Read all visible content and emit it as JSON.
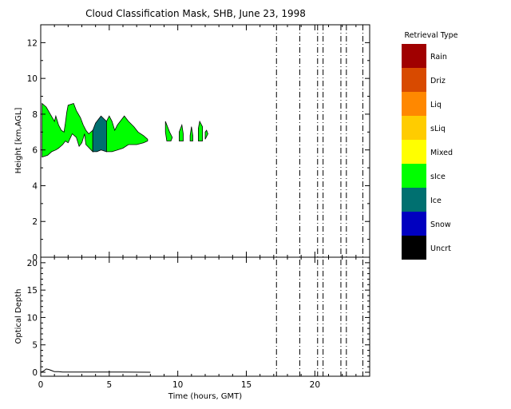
{
  "chart_data": {
    "type": "area",
    "title": "Cloud Classification Mask, SHB, June 23, 1998",
    "panels": [
      {
        "id": "mask",
        "ylabel": "Height [km,AGL]",
        "ylim": [
          0,
          13
        ],
        "yticks": [
          "0",
          "2",
          "4",
          "6",
          "8",
          "10",
          "12"
        ],
        "ytick_values": [
          0,
          2,
          4,
          6,
          8,
          10,
          12
        ]
      },
      {
        "id": "optical-depth",
        "ylabel": "Optical Depth",
        "ylim": [
          0,
          21
        ],
        "yticks": [
          "0",
          "5",
          "10",
          "15",
          "20"
        ],
        "ytick_values": [
          0,
          5,
          10,
          15,
          20
        ]
      }
    ],
    "xlabel": "Time (hours, GMT)",
    "xlim": [
      0,
      24
    ],
    "xticks": [
      "0",
      "5",
      "10",
      "15",
      "20"
    ],
    "xtick_values": [
      0,
      5,
      10,
      15,
      20
    ],
    "missing_data_lines_hours": [
      17.2,
      18.9,
      20.2,
      20.6,
      21.9,
      22.3,
      23.5
    ],
    "legend": {
      "title": "Retrieval Type",
      "position": "right",
      "entries": [
        {
          "label": "Rain",
          "color": "#a00000"
        },
        {
          "label": "Driz",
          "color": "#d84a00"
        },
        {
          "label": "Liq",
          "color": "#ff8800"
        },
        {
          "label": "sLiq",
          "color": "#ffcc00"
        },
        {
          "label": "Mixed",
          "color": "#ffff00"
        },
        {
          "label": "sIce",
          "color": "#00ff00"
        },
        {
          "label": "Ice",
          "color": "#007070"
        },
        {
          "label": "Snow",
          "color": "#0000c0"
        },
        {
          "label": "Uncrt",
          "color": "#000000"
        }
      ]
    },
    "cloud_regions": [
      {
        "class": "sIce",
        "color": "#00ff00",
        "outline": [
          [
            0.1,
            5.6
          ],
          [
            0.1,
            8.6
          ],
          [
            0.4,
            8.4
          ],
          [
            0.7,
            8.0
          ],
          [
            1.0,
            7.6
          ],
          [
            1.1,
            7.9
          ],
          [
            1.3,
            7.4
          ],
          [
            1.5,
            7.1
          ],
          [
            1.7,
            7.0
          ],
          [
            1.8,
            7.5
          ],
          [
            1.9,
            8.1
          ],
          [
            2.0,
            8.5
          ],
          [
            2.4,
            8.6
          ],
          [
            2.6,
            8.2
          ],
          [
            2.9,
            7.8
          ],
          [
            3.1,
            7.4
          ],
          [
            3.3,
            7.1
          ],
          [
            3.5,
            6.9
          ],
          [
            3.8,
            7.1
          ],
          [
            3.8,
            5.9
          ],
          [
            3.3,
            6.3
          ],
          [
            3.2,
            6.9
          ],
          [
            3.0,
            6.4
          ],
          [
            2.8,
            6.2
          ],
          [
            2.6,
            6.7
          ],
          [
            2.3,
            6.9
          ],
          [
            2.0,
            6.4
          ],
          [
            1.8,
            6.5
          ],
          [
            1.6,
            6.3
          ],
          [
            1.3,
            6.1
          ],
          [
            1.1,
            6.0
          ],
          [
            0.8,
            5.9
          ],
          [
            0.5,
            5.7
          ]
        ]
      },
      {
        "class": "Ice",
        "color": "#007070",
        "outline": [
          [
            3.8,
            7.1
          ],
          [
            4.0,
            7.5
          ],
          [
            4.2,
            7.7
          ],
          [
            4.4,
            7.9
          ],
          [
            4.8,
            7.6
          ],
          [
            4.8,
            5.9
          ],
          [
            4.4,
            6.0
          ],
          [
            4.1,
            5.9
          ],
          [
            3.8,
            5.9
          ]
        ]
      },
      {
        "class": "sIce",
        "color": "#00ff00",
        "outline": [
          [
            4.8,
            7.6
          ],
          [
            5.0,
            7.9
          ],
          [
            5.2,
            7.6
          ],
          [
            5.4,
            7.1
          ],
          [
            5.6,
            7.4
          ],
          [
            5.9,
            7.7
          ],
          [
            6.1,
            7.9
          ],
          [
            6.4,
            7.6
          ],
          [
            6.8,
            7.3
          ],
          [
            7.1,
            7.0
          ],
          [
            7.5,
            6.8
          ],
          [
            7.8,
            6.6
          ],
          [
            7.8,
            6.5
          ],
          [
            7.5,
            6.4
          ],
          [
            7.0,
            6.3
          ],
          [
            6.4,
            6.3
          ],
          [
            6.0,
            6.1
          ],
          [
            5.6,
            6.0
          ],
          [
            5.2,
            5.9
          ],
          [
            4.8,
            5.9
          ]
        ]
      },
      {
        "class": "sIce",
        "color": "#00ff00",
        "outline": [
          [
            9.1,
            7.6
          ],
          [
            9.4,
            7.0
          ],
          [
            9.6,
            6.7
          ],
          [
            9.5,
            6.5
          ],
          [
            9.2,
            6.5
          ],
          [
            9.1,
            7.0
          ]
        ]
      },
      {
        "class": "sIce",
        "color": "#00ff00",
        "outline": [
          [
            10.1,
            7.0
          ],
          [
            10.3,
            7.4
          ],
          [
            10.4,
            6.9
          ],
          [
            10.4,
            6.5
          ],
          [
            10.1,
            6.5
          ]
        ]
      },
      {
        "class": "sIce",
        "color": "#00ff00",
        "outline": [
          [
            10.9,
            6.8
          ],
          [
            11.0,
            7.3
          ],
          [
            11.1,
            6.8
          ],
          [
            11.1,
            6.5
          ],
          [
            10.9,
            6.5
          ]
        ]
      },
      {
        "class": "sIce",
        "color": "#00ff00",
        "outline": [
          [
            11.5,
            7.2
          ],
          [
            11.6,
            7.6
          ],
          [
            11.8,
            7.3
          ],
          [
            11.8,
            6.5
          ],
          [
            11.5,
            6.5
          ]
        ]
      },
      {
        "class": "sIce",
        "color": "#00ff00",
        "outline": [
          [
            12.0,
            7.0
          ],
          [
            12.1,
            7.1
          ],
          [
            12.2,
            6.9
          ],
          [
            12.0,
            6.6
          ]
        ]
      }
    ],
    "optical_depth": {
      "x": [
        0,
        0.2,
        0.4,
        0.6,
        0.8,
        1.0,
        1.3,
        1.6,
        2.0,
        3.0,
        4.0,
        5.0,
        6.0,
        7.0,
        8.0
      ],
      "y": [
        0,
        0.2,
        0.6,
        0.5,
        0.3,
        0.1,
        0.1,
        0.05,
        0.05,
        0.03,
        0.03,
        0.03,
        0.03,
        0.02,
        0.0
      ]
    }
  }
}
